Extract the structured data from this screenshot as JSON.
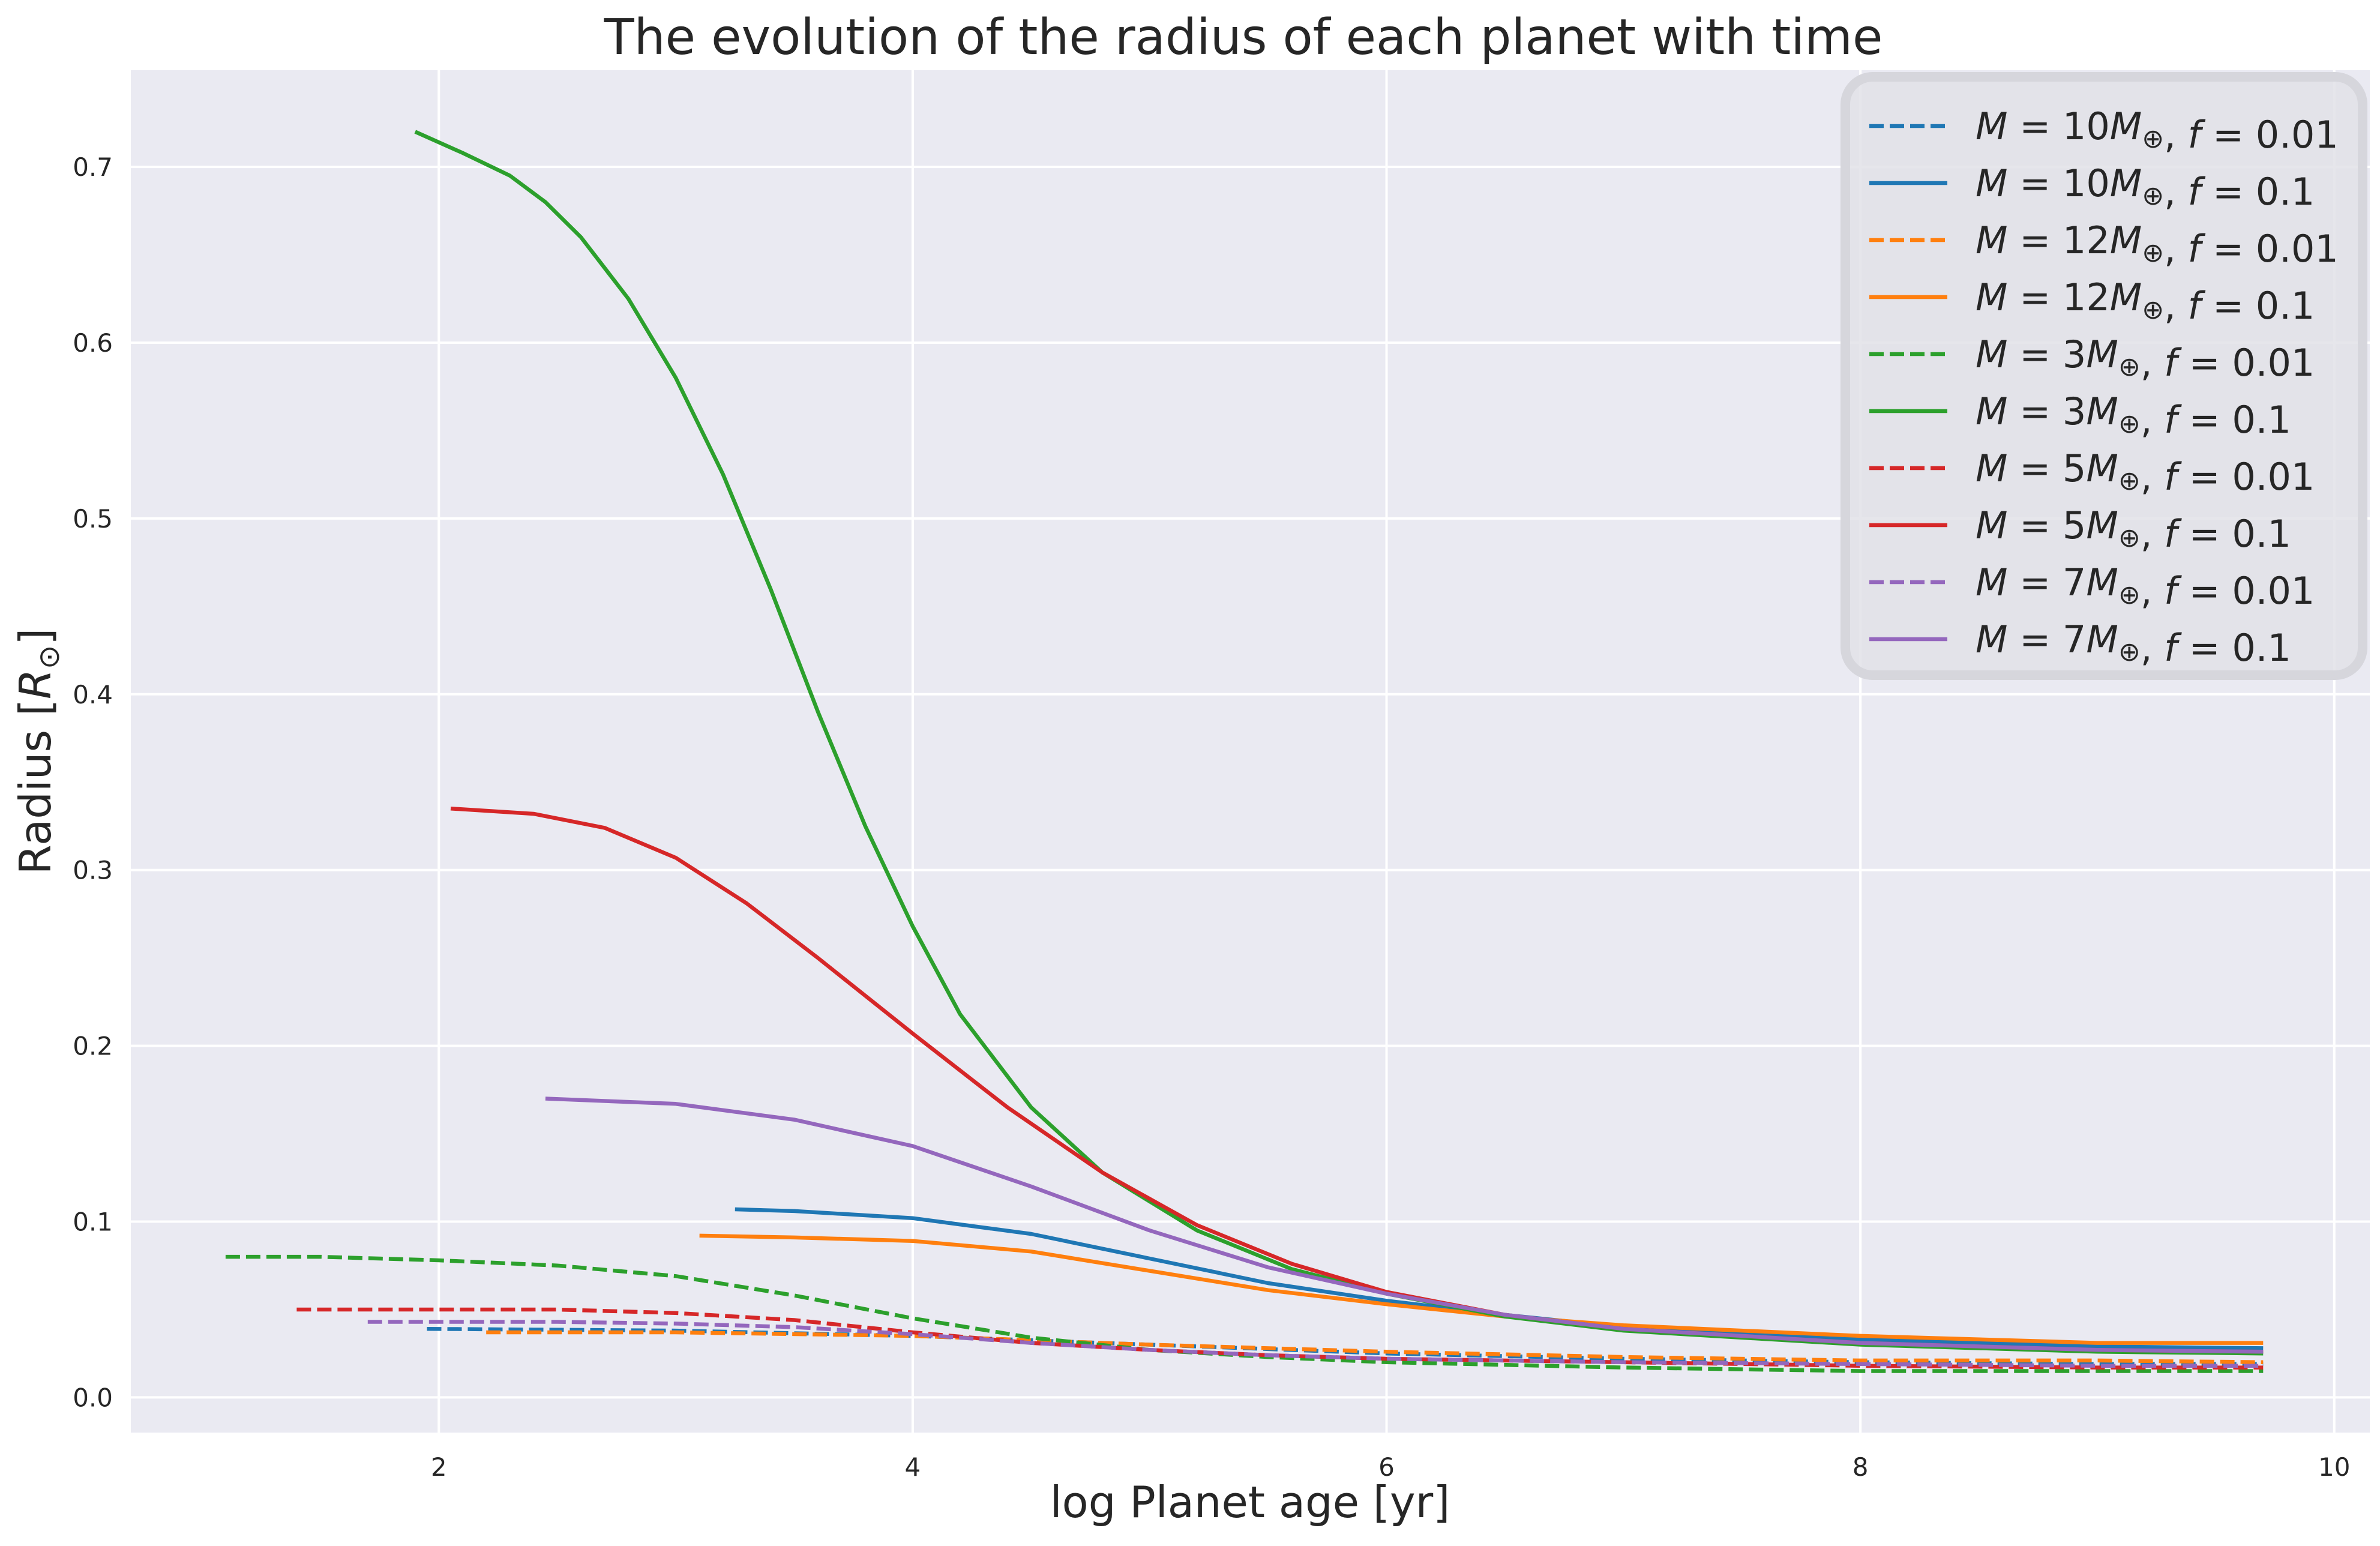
{
  "chart_data": {
    "type": "line",
    "title": "The evolution of the radius of each planet with time",
    "xlabel": "log Planet age [yr]",
    "ylabel": "Radius [R⊙]",
    "xlim": [
      0.7,
      10.15
    ],
    "ylim": [
      -0.02,
      0.755
    ],
    "xticks": [
      2,
      4,
      6,
      8,
      10
    ],
    "yticks": [
      0.0,
      0.1,
      0.2,
      0.3,
      0.4,
      0.5,
      0.6,
      0.7
    ],
    "xtick_labels": [
      "2",
      "4",
      "6",
      "8",
      "10"
    ],
    "ytick_labels": [
      "0.0",
      "0.1",
      "0.2",
      "0.3",
      "0.4",
      "0.5",
      "0.6",
      "0.7"
    ],
    "grid": true,
    "legend_position": "top-right",
    "background": "#eaeaf2",
    "series": [
      {
        "mass": "10",
        "f": "0.01",
        "color": "#1f77b4",
        "dash": true,
        "x": [
          1.95,
          3.0,
          4.0,
          5.0,
          6.0,
          7.0,
          8.0,
          9.0,
          9.7
        ],
        "y": [
          0.039,
          0.038,
          0.035,
          0.03,
          0.025,
          0.022,
          0.02,
          0.019,
          0.019
        ]
      },
      {
        "mass": "10",
        "f": "0.1",
        "color": "#1f77b4",
        "dash": false,
        "x": [
          3.25,
          3.5,
          4.0,
          4.5,
          5.0,
          5.5,
          6.0,
          6.5,
          7.0,
          8.0,
          9.0,
          9.7
        ],
        "y": [
          0.107,
          0.106,
          0.102,
          0.093,
          0.079,
          0.065,
          0.055,
          0.047,
          0.04,
          0.033,
          0.029,
          0.028
        ]
      },
      {
        "mass": "12",
        "f": "0.01",
        "color": "#ff7f0e",
        "dash": true,
        "x": [
          2.2,
          3.0,
          4.0,
          5.0,
          6.0,
          7.0,
          8.0,
          9.0,
          9.7
        ],
        "y": [
          0.037,
          0.037,
          0.035,
          0.03,
          0.026,
          0.023,
          0.021,
          0.021,
          0.02
        ]
      },
      {
        "mass": "12",
        "f": "0.1",
        "color": "#ff7f0e",
        "dash": false,
        "x": [
          3.1,
          3.5,
          4.0,
          4.5,
          5.0,
          5.5,
          6.0,
          6.5,
          7.0,
          8.0,
          9.0,
          9.7
        ],
        "y": [
          0.092,
          0.091,
          0.089,
          0.083,
          0.072,
          0.061,
          0.053,
          0.046,
          0.041,
          0.035,
          0.031,
          0.031
        ]
      },
      {
        "mass": "3",
        "f": "0.01",
        "color": "#2ca02c",
        "dash": true,
        "x": [
          1.1,
          1.5,
          2.0,
          2.5,
          3.0,
          3.5,
          4.0,
          4.5,
          5.0,
          5.5,
          6.0,
          7.0,
          8.0,
          9.0,
          9.7
        ],
        "y": [
          0.08,
          0.08,
          0.078,
          0.075,
          0.069,
          0.058,
          0.045,
          0.034,
          0.027,
          0.023,
          0.02,
          0.017,
          0.015,
          0.015,
          0.015
        ]
      },
      {
        "mass": "3",
        "f": "0.1",
        "color": "#2ca02c",
        "dash": false,
        "x": [
          1.9,
          2.1,
          2.3,
          2.45,
          2.6,
          2.8,
          3.0,
          3.2,
          3.4,
          3.6,
          3.8,
          4.0,
          4.2,
          4.5,
          4.8,
          5.2,
          5.6,
          6.0,
          6.5,
          7.0,
          8.0,
          9.0,
          9.7
        ],
        "y": [
          0.72,
          0.708,
          0.695,
          0.68,
          0.66,
          0.625,
          0.58,
          0.525,
          0.46,
          0.39,
          0.325,
          0.268,
          0.218,
          0.165,
          0.128,
          0.095,
          0.073,
          0.059,
          0.046,
          0.038,
          0.03,
          0.026,
          0.025
        ]
      },
      {
        "mass": "5",
        "f": "0.01",
        "color": "#d62728",
        "dash": true,
        "x": [
          1.4,
          2.0,
          2.5,
          3.0,
          3.5,
          4.0,
          4.5,
          5.0,
          5.5,
          6.0,
          7.0,
          8.0,
          9.0,
          9.7
        ],
        "y": [
          0.05,
          0.05,
          0.05,
          0.048,
          0.044,
          0.037,
          0.031,
          0.027,
          0.024,
          0.022,
          0.02,
          0.018,
          0.017,
          0.017
        ]
      },
      {
        "mass": "5",
        "f": "0.1",
        "color": "#d62728",
        "dash": false,
        "x": [
          2.05,
          2.4,
          2.7,
          3.0,
          3.3,
          3.6,
          4.0,
          4.4,
          4.8,
          5.2,
          5.6,
          6.0,
          6.5,
          7.0,
          8.0,
          9.0,
          9.7
        ],
        "y": [
          0.335,
          0.332,
          0.324,
          0.307,
          0.281,
          0.25,
          0.207,
          0.165,
          0.128,
          0.098,
          0.076,
          0.06,
          0.047,
          0.039,
          0.031,
          0.027,
          0.026
        ]
      },
      {
        "mass": "7",
        "f": "0.01",
        "color": "#9467bd",
        "dash": true,
        "x": [
          1.7,
          2.0,
          2.5,
          3.0,
          3.5,
          4.0,
          4.5,
          5.0,
          5.5,
          6.0,
          7.0,
          8.0,
          9.0,
          9.7
        ],
        "y": [
          0.043,
          0.043,
          0.043,
          0.042,
          0.04,
          0.036,
          0.031,
          0.027,
          0.024,
          0.022,
          0.02,
          0.019,
          0.018,
          0.018
        ]
      },
      {
        "mass": "7",
        "f": "0.1",
        "color": "#9467bd",
        "dash": false,
        "x": [
          2.45,
          3.0,
          3.5,
          4.0,
          4.5,
          5.0,
          5.5,
          6.0,
          6.5,
          7.0,
          8.0,
          9.0,
          9.7
        ],
        "y": [
          0.17,
          0.167,
          0.158,
          0.143,
          0.12,
          0.095,
          0.074,
          0.059,
          0.047,
          0.039,
          0.031,
          0.027,
          0.026
        ]
      }
    ]
  }
}
